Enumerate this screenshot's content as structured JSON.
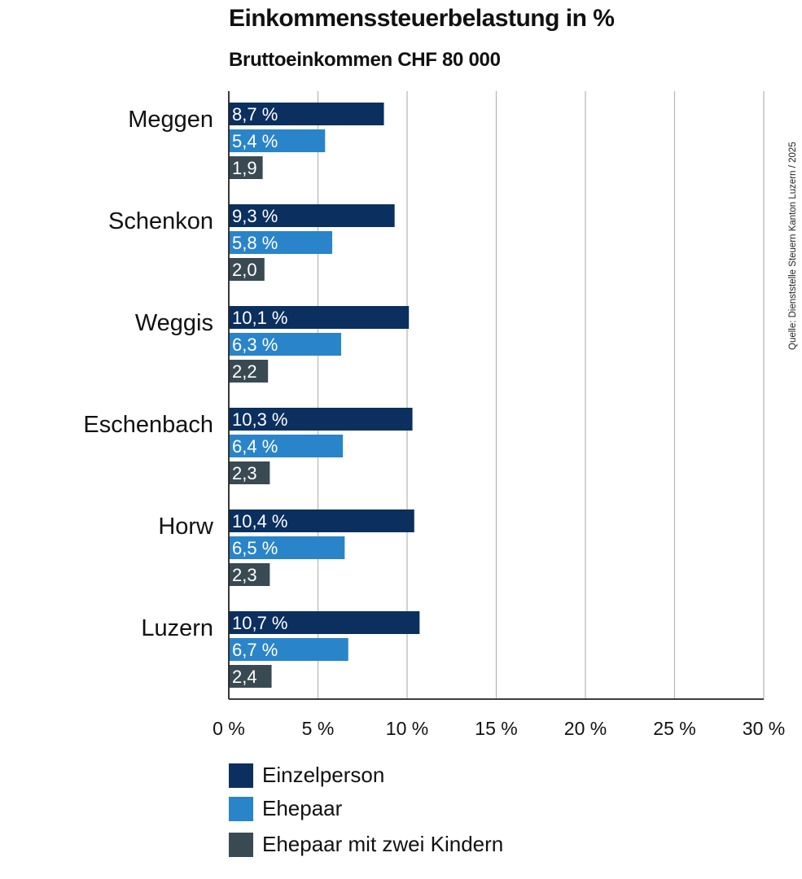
{
  "chart_data": {
    "type": "bar",
    "orientation": "horizontal",
    "title": "Einkommenssteuerbelastung in %",
    "subtitle": "Bruttoeinkommen CHF 80 000",
    "source": "Quelle: Dienststelle Steuern Kanton Luzern / 2025",
    "categories": [
      "Meggen",
      "Schenkon",
      "Weggis",
      "Eschenbach",
      "Horw",
      "Luzern"
    ],
    "series": [
      {
        "name": "Einzelperson",
        "color": "#0b2f5f",
        "values": [
          8.7,
          9.3,
          10.1,
          10.3,
          10.4,
          10.7
        ],
        "labels": [
          "8,7 %",
          "9,3 %",
          "10,1 %",
          "10,3 %",
          "10,4 %",
          "10,7 %"
        ]
      },
      {
        "name": "Ehepaar",
        "color": "#2a84c9",
        "values": [
          5.4,
          5.8,
          6.3,
          6.4,
          6.5,
          6.7
        ],
        "labels": [
          "5,4 %",
          "5,8 %",
          "6,3 %",
          "6,4 %",
          "6,5 %",
          "6,7 %"
        ]
      },
      {
        "name": "Ehepaar mit zwei Kindern",
        "color": "#3a4a52",
        "values": [
          1.9,
          2.0,
          2.2,
          2.3,
          2.3,
          2.4
        ],
        "labels": [
          "1,9",
          "2,0",
          "2,2",
          "2,3",
          "2,3",
          "2,4"
        ]
      }
    ],
    "xlim": [
      0,
      30
    ],
    "xticks": [
      0,
      5,
      10,
      15,
      20,
      25,
      30
    ],
    "xtick_labels": [
      "0 %",
      "5 %",
      "10 %",
      "15 %",
      "20 %",
      "25 %",
      "30 %"
    ],
    "grid": "vertical",
    "legend_position": "bottom-left"
  }
}
